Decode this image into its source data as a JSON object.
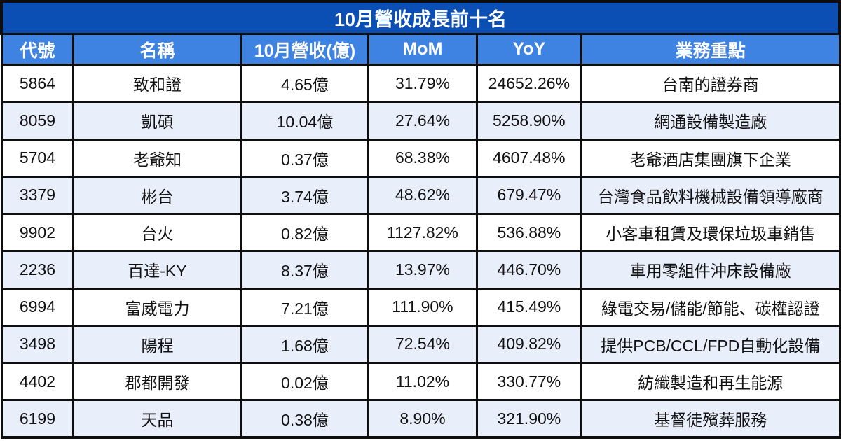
{
  "chart_data": {
    "type": "table",
    "title": "10月營收成長前十名",
    "columns": [
      "代號",
      "名稱",
      "10月營收(億)",
      "MoM",
      "YoY",
      "業務重點"
    ],
    "rows": [
      [
        "5864",
        "致和證",
        "4.65億",
        "31.79%",
        "24652.26%",
        "台南的證券商"
      ],
      [
        "8059",
        "凱碩",
        "10.04億",
        "27.64%",
        "5258.90%",
        "網通設備製造廠"
      ],
      [
        "5704",
        "老爺知",
        "0.37億",
        "68.38%",
        "4607.48%",
        "老爺酒店集團旗下企業"
      ],
      [
        "3379",
        "彬台",
        "3.74億",
        "48.62%",
        "679.47%",
        "台灣食品飲料機械設備領導廠商"
      ],
      [
        "9902",
        "台火",
        "0.82億",
        "1127.82%",
        "536.88%",
        "小客車租賃及環保垃圾車銷售"
      ],
      [
        "2236",
        "百達-KY",
        "8.37億",
        "13.97%",
        "446.70%",
        "車用零組件沖床設備廠"
      ],
      [
        "6994",
        "富威電力",
        "7.21億",
        "111.90%",
        "415.49%",
        "綠電交易/儲能/節能、碳權認證"
      ],
      [
        "3498",
        "陽程",
        "1.68億",
        "72.54%",
        "409.82%",
        "提供PCB/CCL/FPD自動化設備"
      ],
      [
        "4402",
        "郡都開發",
        "0.02億",
        "11.02%",
        "330.77%",
        "紡織製造和再生能源"
      ],
      [
        "6199",
        "天品",
        "0.38億",
        "8.90%",
        "321.90%",
        "基督徒殯葬服務"
      ]
    ],
    "layout": {
      "column_widths_pct": [
        8.6,
        20.0,
        15.2,
        12.9,
        12.5,
        30.8
      ],
      "row_striping": "even-rows-tinted",
      "grid": true
    }
  },
  "colors": {
    "title_bg": "#0b4fb5",
    "header_bg": "#3e82e2",
    "row_bg": "#ffffff",
    "row_alt_bg": "#e9eefb",
    "border": "#0e0e0e",
    "header_text": "#ffffff",
    "cell_text": "#111111"
  }
}
